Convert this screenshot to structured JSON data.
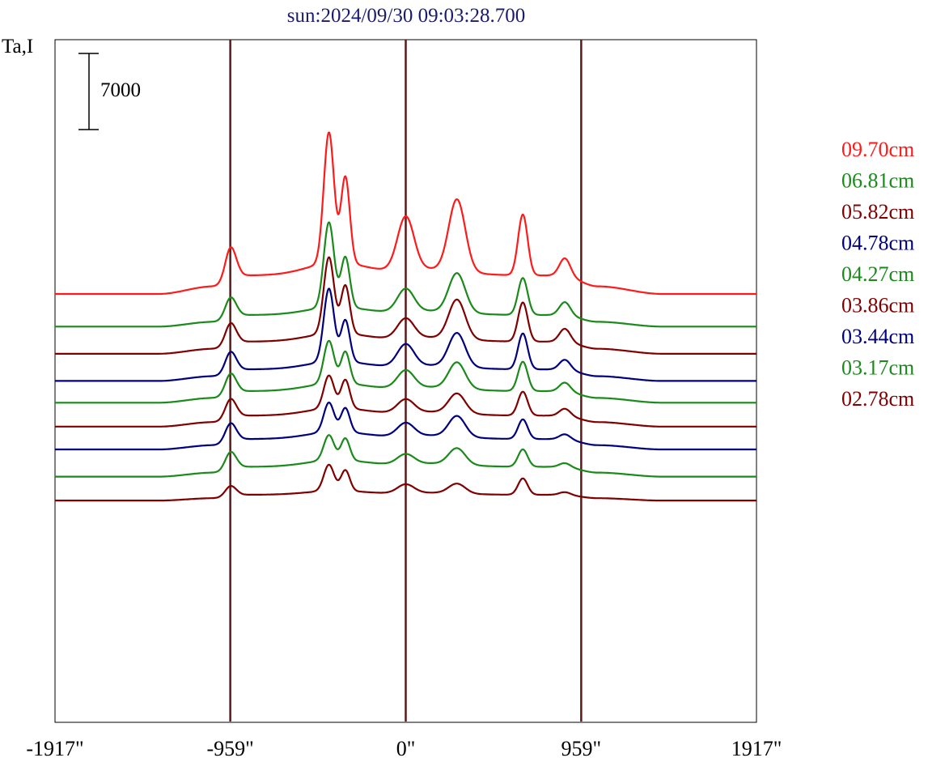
{
  "chart_data": {
    "type": "line",
    "title": "sun:2024/09/30 09:03:28.700",
    "ylabel": "Ta,I",
    "scale_bar_label": "7000",
    "xlim": [
      -1917,
      1917
    ],
    "x_ticks": [
      {
        "value": -1917,
        "label": "-1917\""
      },
      {
        "value": -959,
        "label": "-959\""
      },
      {
        "value": 0,
        "label": "0\""
      },
      {
        "value": 959,
        "label": "959\""
      },
      {
        "value": 1917,
        "label": "1917\""
      }
    ],
    "vertical_lines_at": [
      -959,
      0,
      959
    ],
    "grid": false,
    "legend_position": "right",
    "colors": {
      "title": "#1a1a6e",
      "axis": "#000000",
      "vline": "#5a1a1a"
    },
    "peak_x": [
      -959,
      -420,
      -330,
      0,
      280,
      640,
      870
    ],
    "series": [
      {
        "name": "09.70cm",
        "color": "#ff1a1a",
        "baseline": 0,
        "amplitudes": [
          3200,
          12000,
          7900,
          4900,
          6600,
          5600,
          1600
        ]
      },
      {
        "name": "06.81cm",
        "color": "#1a8a1a",
        "baseline": -3000,
        "amplitudes": [
          2000,
          7800,
          4600,
          2100,
          3600,
          3400,
          1200
        ]
      },
      {
        "name": "05.82cm",
        "color": "#800000",
        "baseline": -5500,
        "amplitudes": [
          2100,
          7000,
          4400,
          1800,
          3600,
          3600,
          1200
        ]
      },
      {
        "name": "04.78cm",
        "color": "#00007f",
        "baseline": -8000,
        "amplitudes": [
          2000,
          6700,
          3800,
          2000,
          3100,
          3300,
          900
        ]
      },
      {
        "name": "04.27cm",
        "color": "#1a8a1a",
        "baseline": -10000,
        "amplitudes": [
          2000,
          3900,
          2900,
          1600,
          2400,
          2700,
          800
        ]
      },
      {
        "name": "03.86cm",
        "color": "#800000",
        "baseline": -12200,
        "amplitudes": [
          1900,
          3000,
          2600,
          1200,
          1800,
          2200,
          650
        ]
      },
      {
        "name": "03.44cm",
        "color": "#00007f",
        "baseline": -14300,
        "amplitudes": [
          1800,
          2700,
          2200,
          1200,
          1900,
          1800,
          450
        ]
      },
      {
        "name": "03.17cm",
        "color": "#1a8a1a",
        "baseline": -16800,
        "amplitudes": [
          1700,
          2300,
          2000,
          900,
          1500,
          1600,
          350
        ]
      },
      {
        "name": "02.78cm",
        "color": "#800000",
        "baseline": -19000,
        "amplitudes": [
          1000,
          2400,
          1900,
          800,
          900,
          1500,
          250
        ]
      }
    ]
  }
}
